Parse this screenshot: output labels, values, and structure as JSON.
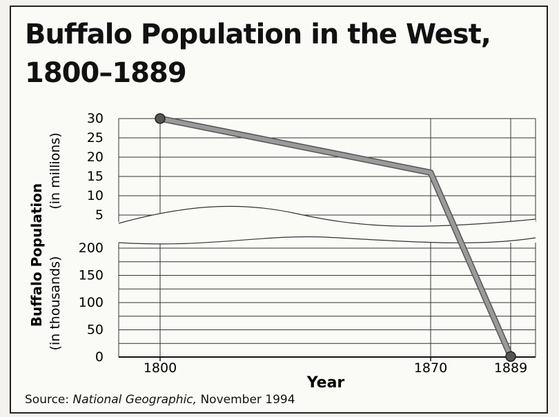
{
  "chart_data": [
    {
      "type": "line",
      "title": "Buffalo Population in the West,",
      "subtitle": "1800–1889",
      "xlabel": "Year",
      "ylabel": "Buffalo Population",
      "upper_unit": "(in millions)",
      "lower_unit": "(in thousands)",
      "x_ticks": [
        "1800",
        "1870",
        "1889"
      ],
      "upper_y_ticks": [
        "30",
        "25",
        "20",
        "15",
        "10",
        "5"
      ],
      "lower_y_ticks": [
        "200",
        "150",
        "100",
        "50",
        "0"
      ],
      "series": [
        {
          "x": [
            1800,
            1870,
            1889
          ],
          "y": [
            30000000,
            16000000,
            1000
          ],
          "colors": {
            "line": "#9a9a9a",
            "marker": "#555555"
          }
        }
      ],
      "scale": "broken axis: upper panel 0–30 million, lower panel 0–200 thousand",
      "grid": true
    }
  ],
  "source": {
    "prefix": "Source: ",
    "publication": "National Geographic,",
    "date": " November 1994"
  }
}
